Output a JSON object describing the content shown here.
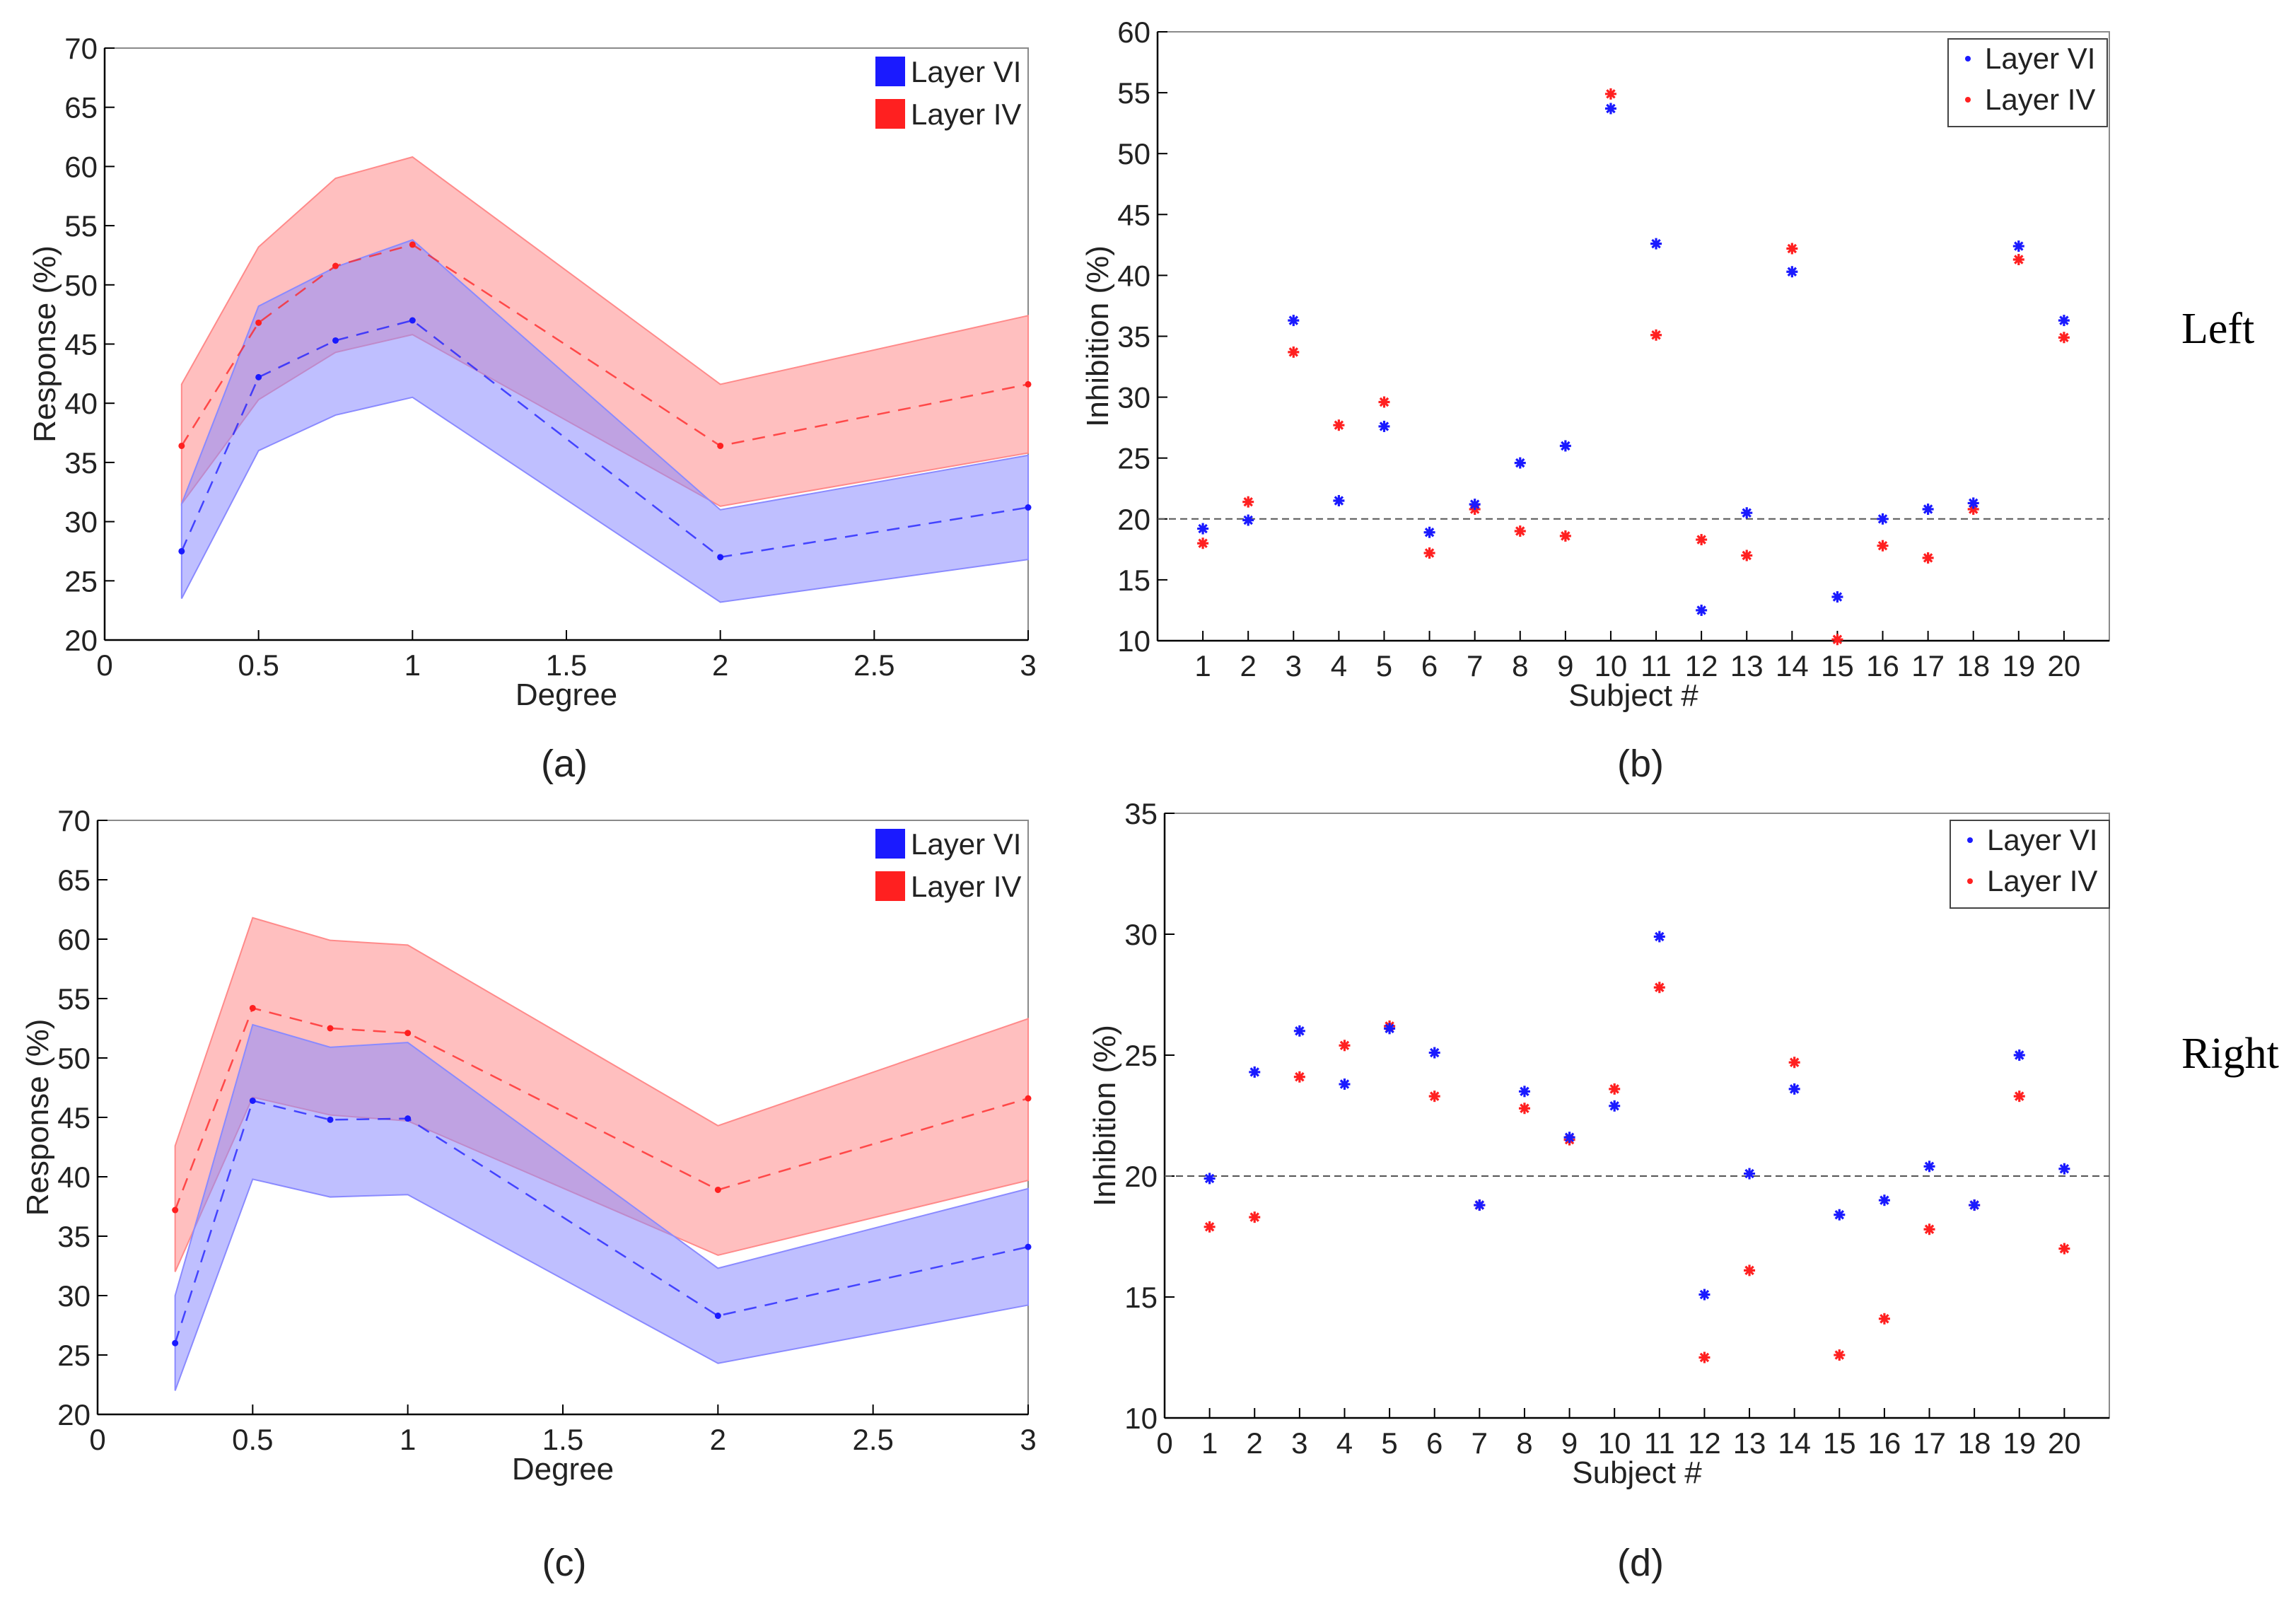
{
  "side_labels": {
    "top": "Left",
    "bottom": "Right"
  },
  "colors": {
    "layer_vi": "#1a1aff",
    "layer_iv": "#ff2020",
    "band_vi": "#8a8aff",
    "band_iv": "#ff8a8a",
    "axis": "#000000",
    "ref_line": "#555555"
  },
  "chart_data": [
    {
      "id": "a",
      "panel_label": "(a)",
      "type": "line",
      "xlabel": "Degree",
      "ylabel": "Response (%)",
      "xlim": [
        0,
        3
      ],
      "ylim": [
        20,
        70
      ],
      "xticks": [
        0,
        0.5,
        1,
        1.5,
        2,
        2.5,
        3
      ],
      "xtick_labels": [
        "0",
        "0.5",
        "1",
        "1.5",
        "2",
        "2.5",
        "3"
      ],
      "yticks": [
        20,
        25,
        30,
        35,
        40,
        45,
        50,
        55,
        60,
        65,
        70
      ],
      "ytick_labels": [
        "20",
        "25",
        "30",
        "35",
        "40",
        "45",
        "50",
        "55",
        "60",
        "65",
        "70"
      ],
      "legend": [
        "Layer VI",
        "Layer IV"
      ],
      "legend_position": "top-right",
      "x": [
        0.25,
        0.5,
        0.75,
        1,
        2,
        3
      ],
      "series": [
        {
          "name": "Layer VI",
          "values": [
            27.5,
            42.2,
            45.3,
            47.0,
            27.0,
            31.2
          ],
          "lower": [
            23.5,
            36.0,
            39.0,
            40.5,
            23.2,
            26.8
          ],
          "upper": [
            31.5,
            48.2,
            51.5,
            53.8,
            31.0,
            35.6
          ]
        },
        {
          "name": "Layer IV",
          "values": [
            36.4,
            46.8,
            51.6,
            53.4,
            36.4,
            41.6
          ],
          "lower": [
            31.5,
            40.3,
            44.3,
            45.8,
            31.3,
            35.8
          ],
          "upper": [
            41.6,
            53.2,
            59.0,
            60.8,
            41.6,
            47.4
          ]
        }
      ]
    },
    {
      "id": "b",
      "panel_label": "(b)",
      "type": "scatter",
      "xlabel": "Subject #",
      "ylabel": "Inhibition (%)",
      "xlim": [
        0,
        21
      ],
      "ylim": [
        10,
        60
      ],
      "xticks": [
        1,
        2,
        3,
        4,
        5,
        6,
        7,
        8,
        9,
        10,
        11,
        12,
        13,
        14,
        15,
        16,
        17,
        18,
        19,
        20
      ],
      "xtick_labels": [
        "1",
        "2",
        "3",
        "4",
        "5",
        "6",
        "7",
        "8",
        "9",
        "10",
        "11",
        "12",
        "13",
        "14",
        "15",
        "16",
        "17",
        "18",
        "19",
        "20"
      ],
      "yticks": [
        10,
        15,
        20,
        25,
        30,
        35,
        40,
        45,
        50,
        55,
        60
      ],
      "ytick_labels": [
        "10",
        "15",
        "20",
        "25",
        "30",
        "35",
        "40",
        "45",
        "50",
        "55",
        "60"
      ],
      "reference_line": 20,
      "legend": [
        "Layer VI",
        "Layer IV"
      ],
      "legend_position": "top-right",
      "x": [
        1,
        2,
        3,
        4,
        5,
        6,
        7,
        8,
        9,
        10,
        11,
        12,
        13,
        14,
        15,
        16,
        17,
        18,
        19,
        20
      ],
      "series": [
        {
          "name": "Layer VI",
          "values": [
            19.2,
            19.9,
            36.3,
            21.5,
            27.6,
            18.9,
            21.2,
            24.6,
            26.0,
            53.7,
            42.6,
            12.5,
            20.5,
            40.3,
            13.6,
            20.0,
            20.8,
            21.3,
            42.4,
            36.3
          ]
        },
        {
          "name": "Layer IV",
          "values": [
            18.0,
            21.4,
            33.7,
            27.7,
            29.6,
            17.2,
            20.8,
            19.0,
            18.6,
            54.9,
            35.1,
            18.3,
            17.0,
            42.2,
            10.1,
            17.8,
            16.8,
            20.8,
            41.3,
            34.9
          ]
        }
      ]
    },
    {
      "id": "c",
      "panel_label": "(c)",
      "type": "line",
      "xlabel": "Degree",
      "ylabel": "Response (%)",
      "xlim": [
        0,
        3
      ],
      "ylim": [
        20,
        70
      ],
      "xticks": [
        0,
        0.5,
        1,
        1.5,
        2,
        2.5,
        3
      ],
      "xtick_labels": [
        "0",
        "0.5",
        "1",
        "1.5",
        "2",
        "2.5",
        "3"
      ],
      "yticks": [
        20,
        25,
        30,
        35,
        40,
        45,
        50,
        55,
        60,
        65,
        70
      ],
      "ytick_labels": [
        "20",
        "25",
        "30",
        "35",
        "40",
        "45",
        "50",
        "55",
        "60",
        "65",
        "70"
      ],
      "legend": [
        "Layer VI",
        "Layer IV"
      ],
      "legend_position": "top-right",
      "x": [
        0.25,
        0.5,
        0.75,
        1,
        2,
        3
      ],
      "series": [
        {
          "name": "Layer VI",
          "values": [
            26.0,
            46.4,
            44.8,
            44.9,
            28.3,
            34.1
          ],
          "lower": [
            22.0,
            39.8,
            38.3,
            38.5,
            24.3,
            29.2
          ],
          "upper": [
            30.0,
            52.8,
            50.9,
            51.3,
            32.3,
            39.0
          ]
        },
        {
          "name": "Layer IV",
          "values": [
            37.2,
            54.2,
            52.5,
            52.1,
            38.9,
            46.6
          ],
          "lower": [
            32.0,
            46.7,
            45.2,
            44.7,
            33.4,
            39.7
          ],
          "upper": [
            42.6,
            61.8,
            59.9,
            59.5,
            44.3,
            53.3
          ]
        }
      ]
    },
    {
      "id": "d",
      "panel_label": "(d)",
      "type": "scatter",
      "xlabel": "Subject #",
      "ylabel": "Inhibition (%)",
      "xlim": [
        0,
        21
      ],
      "ylim": [
        10,
        35
      ],
      "xticks": [
        0,
        1,
        2,
        3,
        4,
        5,
        6,
        7,
        8,
        9,
        10,
        11,
        12,
        13,
        14,
        15,
        16,
        17,
        18,
        19,
        20
      ],
      "xtick_labels": [
        "0",
        "1",
        "2",
        "3",
        "4",
        "5",
        "6",
        "7",
        "8",
        "9",
        "10",
        "11",
        "12",
        "13",
        "14",
        "15",
        "16",
        "17",
        "18",
        "19",
        "20"
      ],
      "yticks": [
        10,
        15,
        20,
        25,
        30,
        35
      ],
      "ytick_labels": [
        "10",
        "15",
        "20",
        "25",
        "30",
        "35"
      ],
      "reference_line": 20,
      "legend": [
        "Layer VI",
        "Layer IV"
      ],
      "legend_position": "top-right",
      "x": [
        1,
        2,
        3,
        4,
        5,
        6,
        7,
        8,
        9,
        10,
        11,
        12,
        13,
        14,
        15,
        16,
        17,
        18,
        19,
        20
      ],
      "series": [
        {
          "name": "Layer VI",
          "values": [
            19.9,
            24.3,
            26.0,
            23.8,
            26.1,
            25.1,
            18.8,
            23.5,
            21.6,
            22.9,
            29.9,
            15.1,
            20.1,
            23.6,
            18.4,
            19.0,
            20.4,
            18.8,
            25.0,
            20.3
          ]
        },
        {
          "name": "Layer IV",
          "values": [
            17.9,
            18.3,
            24.1,
            25.4,
            26.2,
            23.3,
            18.8,
            22.8,
            21.5,
            23.6,
            27.8,
            12.5,
            16.1,
            24.7,
            12.6,
            14.1,
            17.8,
            18.8,
            23.3,
            17.0
          ]
        }
      ]
    }
  ]
}
